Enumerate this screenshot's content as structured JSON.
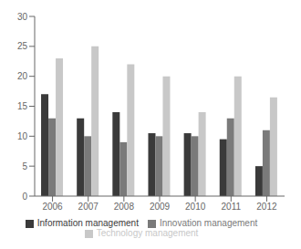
{
  "chart_data": {
    "type": "bar",
    "categories": [
      "2006",
      "2007",
      "2008",
      "2009",
      "2010",
      "2011",
      "2012"
    ],
    "series": [
      {
        "name": "Information management",
        "color": "#3a3a3a",
        "values": [
          17,
          13,
          14,
          10.5,
          10.5,
          9.5,
          5
        ]
      },
      {
        "name": "Innovation management",
        "color": "#7a7a7a",
        "values": [
          13,
          10,
          9,
          10,
          10,
          13,
          11
        ]
      },
      {
        "name": "Technology management",
        "color": "#c8c8c8",
        "values": [
          23,
          25,
          22,
          20,
          14,
          20,
          16.5
        ]
      }
    ],
    "ylim": [
      0,
      30
    ],
    "yticks": [
      0,
      5,
      10,
      15,
      20,
      25,
      30
    ],
    "grid": false,
    "legend": "bottom"
  }
}
